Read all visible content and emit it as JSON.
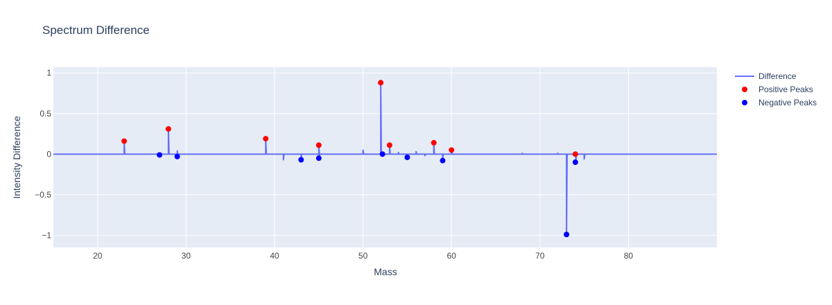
{
  "chart_data": {
    "type": "line",
    "title": "Spectrum Difference",
    "xlabel": "Mass",
    "ylabel": "Intensity Difference",
    "xlim": [
      15,
      90
    ],
    "ylim": [
      -1.15,
      1.07
    ],
    "xticks": [
      20,
      30,
      40,
      50,
      60,
      70,
      80
    ],
    "xtick_labels": [
      "20",
      "30",
      "40",
      "50",
      "60",
      "70",
      "80"
    ],
    "yticks": [
      1,
      0.5,
      0,
      -0.5,
      -1
    ],
    "ytick_labels": [
      "1",
      "0.5",
      "0",
      "−0.5",
      "−1"
    ],
    "grid": true,
    "legend_position": "top-right",
    "colors": {
      "difference": "#636efa",
      "positive": "#ff0000",
      "negative": "#0000ff",
      "plot_background": "#e5ecf6"
    },
    "series": [
      {
        "name": "Difference",
        "mode": "lines",
        "baseline": 0,
        "spikes": [
          {
            "x": 23,
            "y": 0.16
          },
          {
            "x": 27,
            "y": -0.01
          },
          {
            "x": 28,
            "y": 0.31
          },
          {
            "x": 29,
            "y": 0.04
          },
          {
            "x": 29.1,
            "y": -0.03
          },
          {
            "x": 39,
            "y": 0.19
          },
          {
            "x": 41,
            "y": -0.07
          },
          {
            "x": 43,
            "y": -0.07
          },
          {
            "x": 45,
            "y": 0.11
          },
          {
            "x": 45.05,
            "y": -0.05
          },
          {
            "x": 50,
            "y": 0.05
          },
          {
            "x": 52,
            "y": 0.88
          },
          {
            "x": 52.2,
            "y": 0.0
          },
          {
            "x": 53,
            "y": 0.11
          },
          {
            "x": 54,
            "y": 0.02
          },
          {
            "x": 55,
            "y": -0.04
          },
          {
            "x": 56,
            "y": 0.03
          },
          {
            "x": 57,
            "y": -0.02
          },
          {
            "x": 58,
            "y": 0.14
          },
          {
            "x": 59,
            "y": -0.08
          },
          {
            "x": 60,
            "y": 0.05
          },
          {
            "x": 68,
            "y": 0.01
          },
          {
            "x": 72,
            "y": 0.01
          },
          {
            "x": 73,
            "y": -0.99
          },
          {
            "x": 74,
            "y": 0.0
          },
          {
            "x": 74.05,
            "y": -0.1
          },
          {
            "x": 75,
            "y": -0.06
          }
        ]
      },
      {
        "name": "Positive Peaks",
        "mode": "markers",
        "points": [
          {
            "x": 23,
            "y": 0.16
          },
          {
            "x": 28,
            "y": 0.31
          },
          {
            "x": 39,
            "y": 0.19
          },
          {
            "x": 45,
            "y": 0.11
          },
          {
            "x": 52,
            "y": 0.88
          },
          {
            "x": 53,
            "y": 0.11
          },
          {
            "x": 58,
            "y": 0.14
          },
          {
            "x": 60,
            "y": 0.05
          },
          {
            "x": 74,
            "y": 0.0
          }
        ]
      },
      {
        "name": "Negative Peaks",
        "mode": "markers",
        "points": [
          {
            "x": 27,
            "y": -0.01
          },
          {
            "x": 29,
            "y": -0.03
          },
          {
            "x": 43,
            "y": -0.07
          },
          {
            "x": 45,
            "y": -0.05
          },
          {
            "x": 52.2,
            "y": 0.0
          },
          {
            "x": 55,
            "y": -0.04
          },
          {
            "x": 59,
            "y": -0.08
          },
          {
            "x": 73,
            "y": -0.99
          },
          {
            "x": 74,
            "y": -0.1
          }
        ]
      }
    ],
    "legend": [
      {
        "label": "Difference",
        "symbol": "line"
      },
      {
        "label": "Positive Peaks",
        "symbol": "dot"
      },
      {
        "label": "Negative Peaks",
        "symbol": "dot"
      }
    ]
  }
}
